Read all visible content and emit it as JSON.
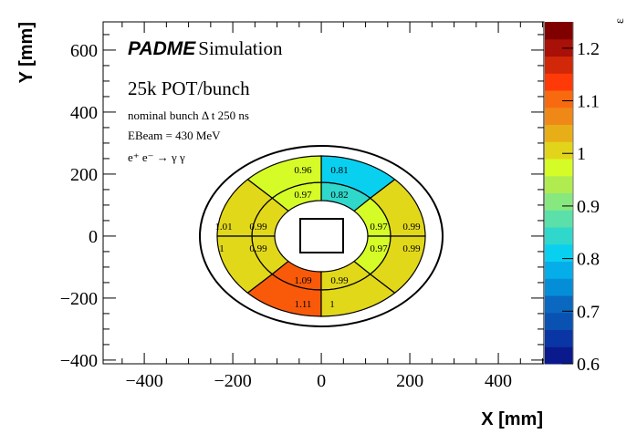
{
  "chart_data": {
    "type": "heatmap",
    "title": "PADME Simulation",
    "title_bold": "PADME",
    "title_rest": "Simulation",
    "annotations": [
      "25k POT/bunch",
      "nominal bunch   Δ t 250 ns",
      "EBeam = 430 MeV",
      "e⁺ e⁻ → γ γ"
    ],
    "xlabel": "X [mm]",
    "ylabel": "Y [mm]",
    "zlabel": "ε",
    "xlim": [
      -493,
      503
    ],
    "ylim": [
      -412,
      691
    ],
    "xticks": [
      -400,
      -200,
      0,
      200,
      400
    ],
    "xtick_labels": [
      "−400",
      "−200",
      "0",
      "200",
      "400"
    ],
    "yticks": [
      -400,
      -200,
      0,
      200,
      400,
      600
    ],
    "ytick_labels": [
      "−400",
      "−200",
      "0",
      "200",
      "400",
      "600"
    ],
    "zlim": [
      0.6,
      1.25
    ],
    "zticks": [
      0.6,
      0.7,
      0.8,
      0.9,
      1.0,
      1.1,
      1.2
    ],
    "ztick_labels": [
      "0.6",
      "0.7",
      "0.8",
      "0.9",
      "1",
      "1.1",
      "1.2"
    ],
    "palette": [
      "#0a1a8c",
      "#0a35a5",
      "#0a52b2",
      "#0a68c0",
      "#058ed8",
      "#05aee8",
      "#0ad0f0",
      "#30d8cc",
      "#5ae0a8",
      "#88e880",
      "#b0ec50",
      "#d6fc28",
      "#e2d41a",
      "#e8ae18",
      "#f08818",
      "#f86a10",
      "#ff3a08",
      "#d02808",
      "#a81008",
      "#800000"
    ],
    "sectors": [
      {
        "angle": "0-45",
        "inner": "0.97",
        "outer": "0.99",
        "inner_color": "#d6fc28",
        "outer_color": "#e2d81a"
      },
      {
        "angle": "45-90",
        "inner": "0.82",
        "outer": "0.81",
        "inner_color": "#30d8cc",
        "outer_color": "#0ad0f0"
      },
      {
        "angle": "90-135",
        "inner": "0.97",
        "outer": "0.96",
        "inner_color": "#d6fc28",
        "outer_color": "#d6fc28"
      },
      {
        "angle": "135-180",
        "inner": "0.99",
        "outer": "1.01",
        "inner_color": "#e2d81a",
        "outer_color": "#e2d81a"
      },
      {
        "angle": "180-225",
        "inner": "0.99",
        "outer": "1",
        "inner_color": "#e2d81a",
        "outer_color": "#e2d81a"
      },
      {
        "angle": "225-270",
        "inner": "1.09",
        "outer": "1.11",
        "inner_color": "#f85a0a",
        "outer_color": "#f85a0a"
      },
      {
        "angle": "270-315",
        "inner": "0.99",
        "outer": "1",
        "inner_color": "#e2d81a",
        "outer_color": "#e2d81a"
      },
      {
        "angle": "315-360",
        "inner": "0.97",
        "outer": "0.99",
        "inner_color": "#d6fc28",
        "outer_color": "#e2d81a"
      }
    ]
  }
}
